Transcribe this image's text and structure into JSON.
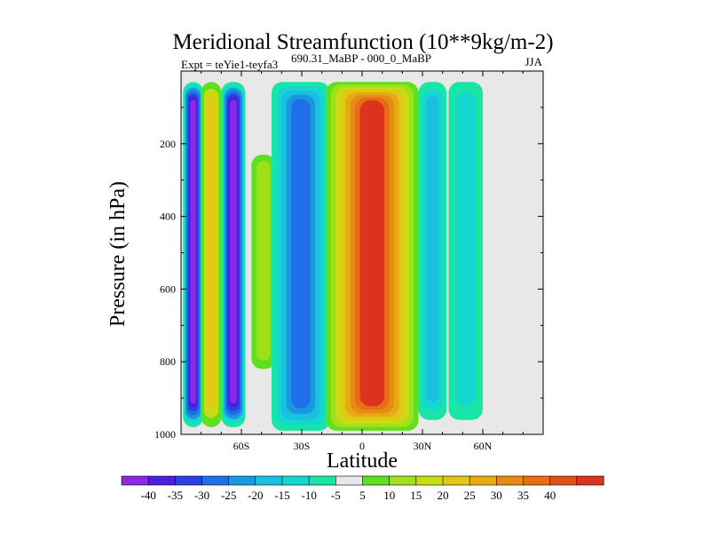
{
  "chart_data": {
    "type": "contour",
    "title": "Meridional Streamfunction (10**9kg/m-2)",
    "subtitle_left": "Expt = teYie1-teyfa3",
    "subtitle_center": "690.31_MaBP - 000_0_MaBP",
    "subtitle_right": "JJA",
    "xlabel": "Latitude",
    "ylabel": "Pressure (in hPa)",
    "xlim": [
      -90,
      90
    ],
    "ylim": [
      1000,
      0
    ],
    "xticks": [
      {
        "value": -60,
        "label": "60S"
      },
      {
        "value": -30,
        "label": "30S"
      },
      {
        "value": 0,
        "label": "0"
      },
      {
        "value": 30,
        "label": "30N"
      },
      {
        "value": 60,
        "label": "60N"
      }
    ],
    "yticks": [
      {
        "value": 200,
        "label": "200"
      },
      {
        "value": 400,
        "label": "400"
      },
      {
        "value": 600,
        "label": "600"
      },
      {
        "value": 800,
        "label": "800"
      },
      {
        "value": 1000,
        "label": "1000"
      }
    ],
    "background_color": "#e8e8e8",
    "colorbar": {
      "colors": [
        "#8c28e6",
        "#4b1ee0",
        "#2a40e3",
        "#1f6fe6",
        "#199ae0",
        "#1ac0e0",
        "#14d8d0",
        "#19e6a6",
        "#e8e8e8",
        "#5fe01e",
        "#a0e01a",
        "#c8dc14",
        "#e0c814",
        "#e6aa14",
        "#e68c14",
        "#e66e14",
        "#e2501a",
        "#dc321e"
      ],
      "labels": [
        "-40",
        "-35",
        "-30",
        "-25",
        "-20",
        "-15",
        "-10",
        "-5",
        "5",
        "10",
        "15",
        "20",
        "25",
        "30",
        "35",
        "40"
      ]
    },
    "cells": [
      {
        "name": "sh-polar-band-outer",
        "lat": [
          -89,
          -79
        ],
        "p": [
          30,
          980
        ],
        "layers": [
          -5,
          -10,
          -20,
          -25,
          -30,
          -35,
          -40
        ]
      },
      {
        "name": "sh-narrow-positive-band",
        "lat": [
          -80,
          -70
        ],
        "p": [
          30,
          980
        ],
        "layers": [
          5,
          15,
          20
        ]
      },
      {
        "name": "sh-polar-band-inner",
        "lat": [
          -70,
          -58
        ],
        "p": [
          30,
          980
        ],
        "layers": [
          -5,
          -10,
          -20,
          -25,
          -30,
          -35,
          -40
        ]
      },
      {
        "name": "sh-midlat-positive",
        "lat": [
          -55,
          -43
        ],
        "p": [
          230,
          820
        ],
        "layers": [
          5,
          10
        ]
      },
      {
        "name": "sh-subtropical-negative",
        "lat": [
          -45,
          -16
        ],
        "p": [
          30,
          990
        ],
        "layers": [
          -5,
          -10,
          -15,
          -20,
          -25
        ]
      },
      {
        "name": "hadley-cell",
        "lat": [
          -18,
          28
        ],
        "p": [
          30,
          990
        ],
        "layers": [
          5,
          10,
          15,
          20,
          25,
          30,
          35,
          40
        ]
      },
      {
        "name": "nh-tropical-negative",
        "lat": [
          28,
          42
        ],
        "p": [
          30,
          960
        ],
        "layers": [
          -5,
          -10,
          -15
        ]
      },
      {
        "name": "nh-midlat-negative",
        "lat": [
          43,
          60
        ],
        "p": [
          30,
          960
        ],
        "layers": [
          -5,
          -10
        ]
      }
    ]
  }
}
